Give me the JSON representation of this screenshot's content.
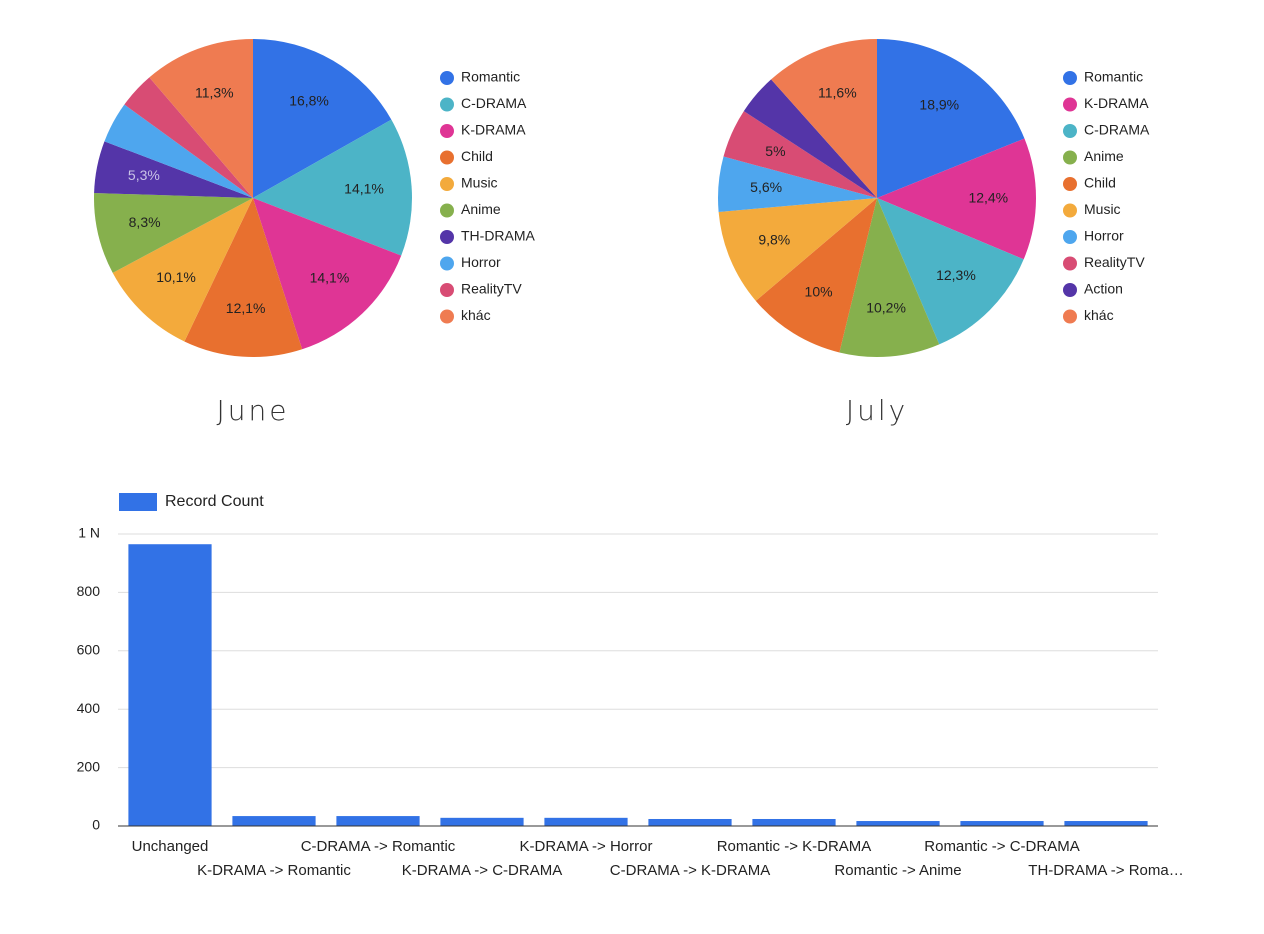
{
  "chart_data": [
    {
      "type": "pie",
      "title": "June",
      "categories": [
        "Romantic",
        "C-DRAMA",
        "K-DRAMA",
        "Child",
        "Music",
        "Anime",
        "TH-DRAMA",
        "Horror",
        "RealityTV",
        "khác"
      ],
      "values": [
        16.8,
        14.1,
        14.1,
        12.1,
        10.1,
        8.3,
        5.3,
        4.2,
        3.7,
        11.3
      ],
      "value_labels": [
        "16,8%",
        "14,1%",
        "14,1%",
        "12,1%",
        "10,1%",
        "8,3%",
        "5,3%",
        null,
        null,
        "11,3%"
      ],
      "colors": [
        "#3272e6",
        "#4cb4c7",
        "#df3595",
        "#e8702f",
        "#f3aa3c",
        "#86b04d",
        "#5435a8",
        "#4ea6ee",
        "#d84c74",
        "#ef7b51"
      ]
    },
    {
      "type": "pie",
      "title": "July",
      "categories": [
        "Romantic",
        "K-DRAMA",
        "C-DRAMA",
        "Anime",
        "Child",
        "Music",
        "Horror",
        "RealityTV",
        "Action",
        "khác"
      ],
      "values": [
        18.9,
        12.4,
        12.3,
        10.2,
        10,
        9.8,
        5.6,
        5,
        4.2,
        11.6
      ],
      "value_labels": [
        "18,9%",
        "12,4%",
        "12,3%",
        "10,2%",
        "10%",
        "9,8%",
        "5,6%",
        "5%",
        null,
        "11,6%"
      ],
      "colors": [
        "#3272e6",
        "#df3595",
        "#4cb4c7",
        "#86b04d",
        "#e8702f",
        "#f3aa3c",
        "#4ea6ee",
        "#d84c74",
        "#5435a8",
        "#ef7b51"
      ]
    },
    {
      "type": "bar",
      "categories": [
        "Unchanged",
        "K-DRAMA -> Romantic",
        "C-DRAMA -> Romantic",
        "K-DRAMA -> C-DRAMA",
        "K-DRAMA -> Horror",
        "C-DRAMA -> K-DRAMA",
        "Romantic -> K-DRAMA",
        "Romantic -> Anime",
        "Romantic -> C-DRAMA",
        "TH-DRAMA -> Roma…"
      ],
      "series": [
        {
          "name": "Record Count",
          "color": "#3272e6",
          "values": [
            965,
            34,
            34,
            28,
            28,
            24,
            24,
            17,
            17,
            17
          ]
        }
      ],
      "ylim": [
        0,
        1000
      ],
      "yticks": [
        0,
        200,
        400,
        600,
        800,
        {
          "value": 1000,
          "label": "1 N"
        }
      ],
      "grid": true
    }
  ]
}
